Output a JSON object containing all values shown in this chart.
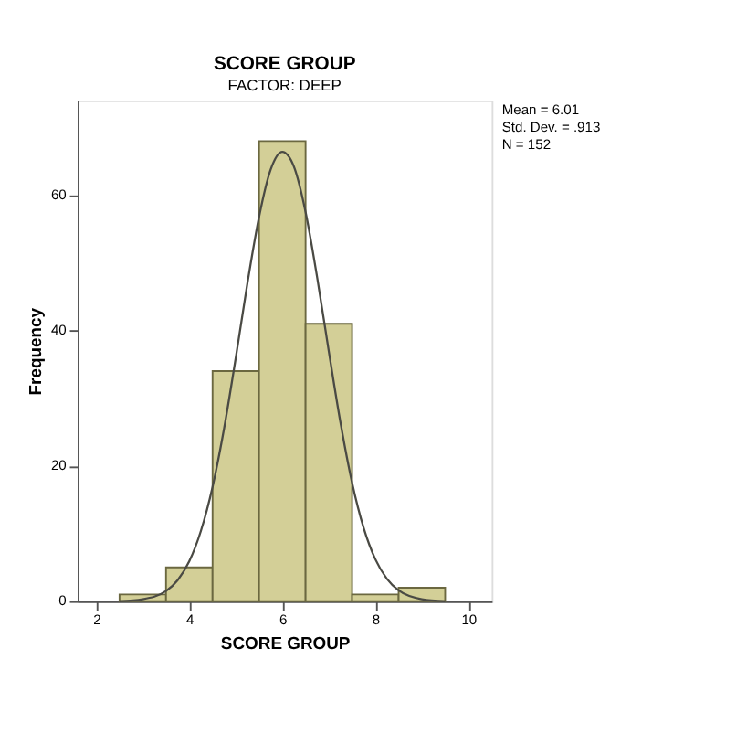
{
  "chart_data": {
    "type": "histogram",
    "title": "SCORE GROUP",
    "subtitle": "FACTOR: DEEP",
    "xlabel": "SCORE GROUP",
    "ylabel": "Frequency",
    "bins": [
      2.5,
      3.5,
      4.5,
      5.5,
      6.5,
      7.5,
      8.5,
      9.5
    ],
    "series": [
      {
        "type": "histogram",
        "color": "#d3cf97",
        "values": [
          1,
          5,
          34,
          68,
          41,
          1,
          2
        ]
      },
      {
        "type": "line",
        "color": "#4a4a44",
        "x": [
          2.5,
          3.0,
          3.5,
          3.75,
          4.0,
          4.25,
          4.5,
          4.75,
          5.0,
          5.25,
          5.5,
          5.75,
          6.0,
          6.25,
          6.5,
          6.75,
          7.0,
          7.25,
          7.5,
          7.75,
          8.0,
          8.25,
          8.5,
          9.0,
          9.5
        ],
        "values": [
          0,
          0.3,
          1.5,
          3.1,
          5.9,
          10.4,
          16.9,
          25.6,
          36.0,
          47.0,
          56.8,
          63.8,
          66.4,
          64.2,
          57.5,
          47.8,
          36.9,
          26.4,
          17.5,
          10.8,
          6.2,
          3.3,
          1.6,
          0.3,
          0
        ]
      }
    ],
    "xlim": [
      1.6,
      10.5
    ],
    "xticks": [
      2,
      4,
      6,
      8,
      10
    ],
    "ylim": [
      0,
      74
    ],
    "yticks": [
      0,
      20,
      40,
      60
    ],
    "grid": false,
    "annotations": [
      "Mean = 6.01",
      "Std. Dev. = .913",
      "N = 152"
    ]
  }
}
